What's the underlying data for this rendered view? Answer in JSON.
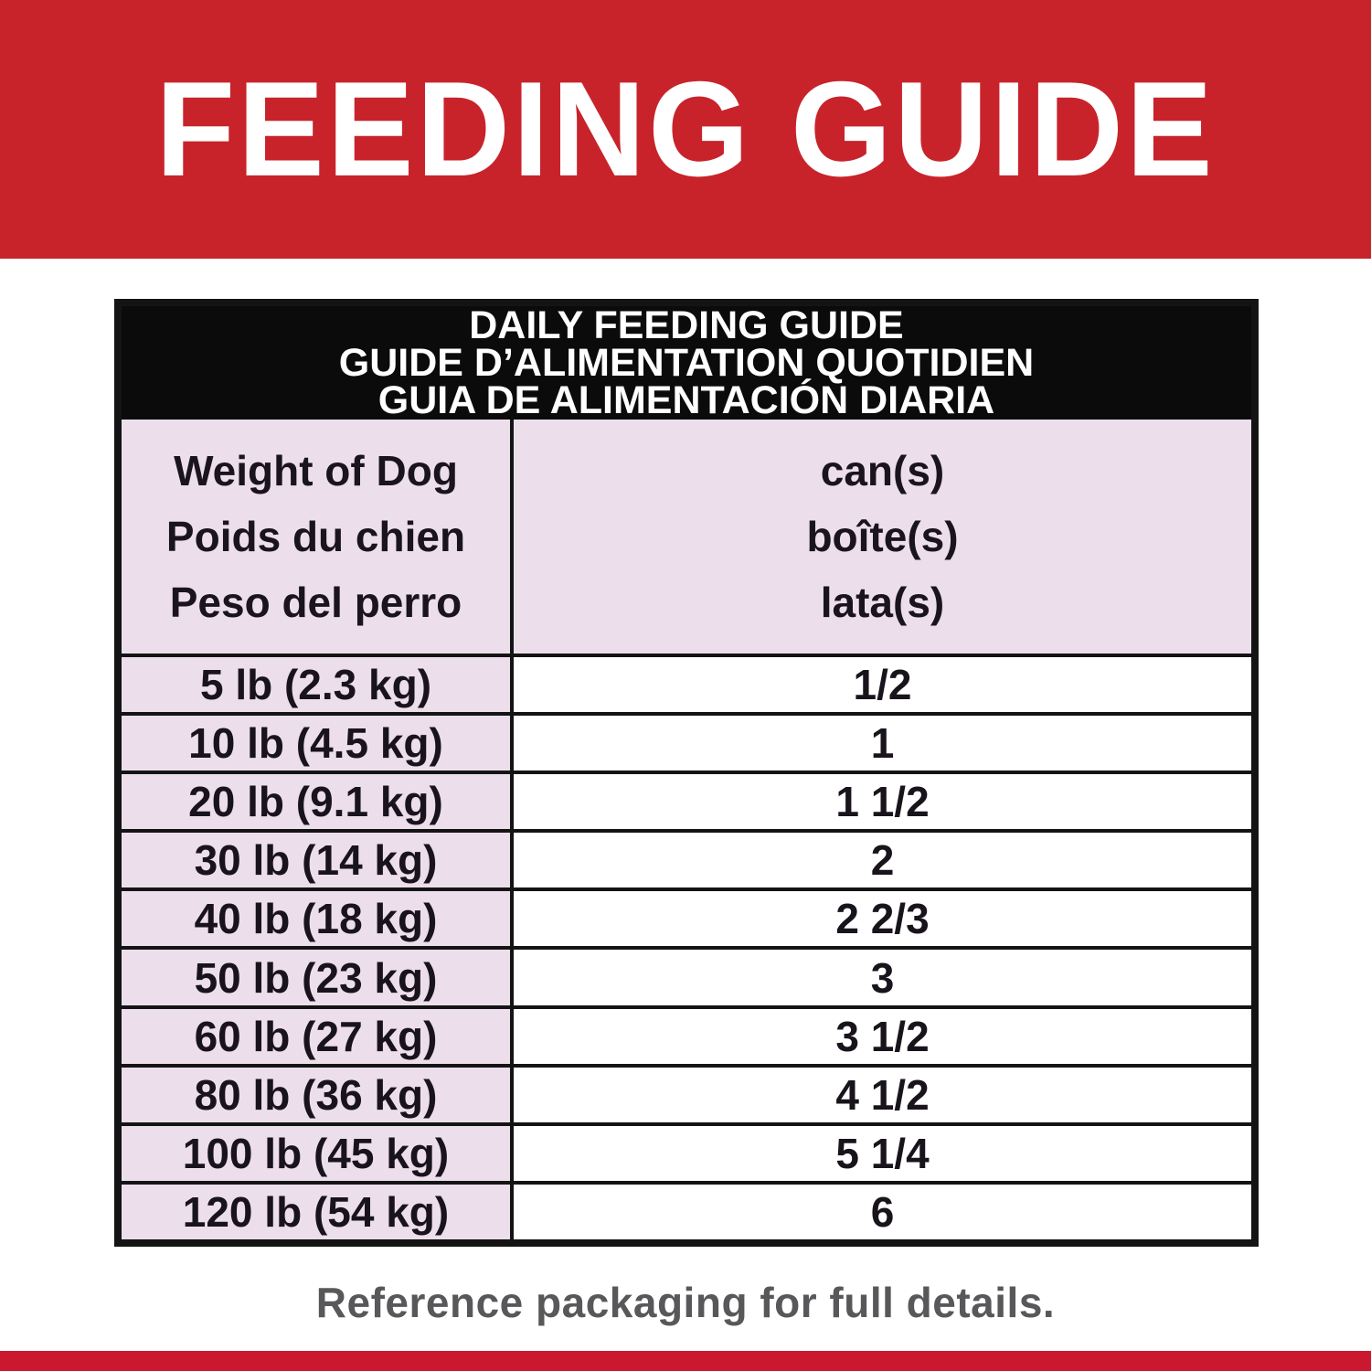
{
  "banner": {
    "title": "FEEDING GUIDE"
  },
  "table": {
    "title_lines": [
      "DAILY FEEDING GUIDE",
      "GUIDE D’ALIMENTATION QUOTIDIEN",
      "GUIA DE ALIMENTACIÓN DIARIA"
    ],
    "col_weight_lines": [
      "Weight of Dog",
      "Poids du chien",
      "Peso del perro"
    ],
    "col_cans_lines": [
      "can(s)",
      "boîte(s)",
      "lata(s)"
    ],
    "rows": [
      {
        "weight": "5 lb (2.3 kg)",
        "cans": "1/2"
      },
      {
        "weight": "10 lb (4.5 kg)",
        "cans": "1"
      },
      {
        "weight": "20 lb (9.1 kg)",
        "cans": "1 1/2"
      },
      {
        "weight": "30 lb (14 kg)",
        "cans": "2"
      },
      {
        "weight": "40 lb (18 kg)",
        "cans": "2 2/3"
      },
      {
        "weight": "50 lb (23 kg)",
        "cans": "3"
      },
      {
        "weight": "60 lb (27 kg)",
        "cans": "3 1/2"
      },
      {
        "weight": "80 lb (36 kg)",
        "cans": "4 1/2"
      },
      {
        "weight": "100 lb (45 kg)",
        "cans": "5 1/4"
      },
      {
        "weight": "120 lb (54 kg)",
        "cans": "6"
      }
    ]
  },
  "footer": {
    "note": "Reference packaging for full details."
  },
  "colors": {
    "brand_red": "#C8232B",
    "strip_red": "#CB1830",
    "band_black": "#0b0b0b",
    "row_pink": "#EDDEEC",
    "text_dark": "#19141c",
    "footer_gray": "#58585B"
  }
}
